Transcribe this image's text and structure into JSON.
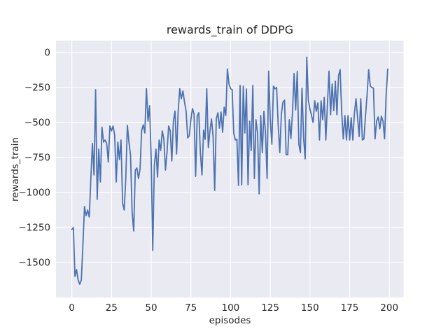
{
  "chart_data": {
    "type": "line",
    "title": "rewards_train of DDPG",
    "xlabel": "episodes",
    "ylabel": "rewards_train",
    "x_ticks": [
      0,
      25,
      50,
      75,
      100,
      125,
      150,
      175,
      200
    ],
    "x_tick_labels": [
      "0",
      "25",
      "50",
      "75",
      "100",
      "125",
      "150",
      "175",
      "200"
    ],
    "y_ticks": [
      0,
      -250,
      -500,
      -750,
      -1000,
      -1250,
      -1500
    ],
    "y_tick_labels": [
      "0",
      "−250",
      "−500",
      "−750",
      "−1000",
      "−1250",
      "−1500"
    ],
    "xlim": [
      -9.95,
      208.95
    ],
    "ylim": [
      -1750,
      85
    ],
    "grid": true,
    "legend": false,
    "series": [
      {
        "name": "rewards_train",
        "color": "#4c72b0",
        "x_start": 0,
        "x_step": 1,
        "y": [
          -1265,
          -1250,
          -1600,
          -1550,
          -1625,
          -1655,
          -1625,
          -1375,
          -1100,
          -1165,
          -1125,
          -1175,
          -900,
          -650,
          -875,
          -265,
          -1050,
          -690,
          -925,
          -533,
          -640,
          -625,
          -650,
          -783,
          -525,
          -560,
          -525,
          -590,
          -925,
          -640,
          -765,
          -625,
          -1075,
          -1125,
          -900,
          -520,
          -640,
          -735,
          -1140,
          -1275,
          -840,
          -825,
          -900,
          -830,
          -558,
          -517,
          -575,
          -258,
          -490,
          -380,
          -758,
          -1415,
          -805,
          -690,
          -890,
          -625,
          -700,
          -560,
          -620,
          -840,
          -708,
          -525,
          -560,
          -775,
          -490,
          -418,
          -725,
          -420,
          -258,
          -330,
          -275,
          -355,
          -420,
          -610,
          -595,
          -480,
          -400,
          -440,
          -885,
          -455,
          -430,
          -720,
          -875,
          -555,
          -620,
          -258,
          -680,
          -560,
          -475,
          -600,
          -985,
          -475,
          -430,
          -540,
          -425,
          -570,
          -390,
          -450,
          -117,
          -225,
          -258,
          -265,
          -575,
          -625,
          -620,
          -950,
          -235,
          -945,
          -240,
          -575,
          -260,
          -945,
          -490,
          -700,
          -235,
          -900,
          -480,
          -575,
          -1010,
          -450,
          -715,
          -420,
          -575,
          -900,
          -133,
          -480,
          -655,
          -240,
          -260,
          -250,
          -520,
          -715,
          -440,
          -355,
          -340,
          -730,
          -730,
          -480,
          -615,
          -430,
          -150,
          -410,
          -135,
          -655,
          -715,
          -255,
          -610,
          -760,
          -33,
          -340,
          -405,
          -450,
          -500,
          -345,
          -420,
          -360,
          -625,
          -345,
          -480,
          -320,
          -625,
          -375,
          -133,
          -445,
          -225,
          -415,
          -205,
          -445,
          -167,
          -122,
          -430,
          -617,
          -450,
          -625,
          -450,
          -625,
          -465,
          -625,
          -435,
          -330,
          -465,
          -600,
          -330,
          -625,
          -617,
          -450,
          -300,
          -123,
          -240,
          -250,
          -255,
          -617,
          -490,
          -460,
          -545,
          -455,
          -490,
          -617,
          -300,
          -118
        ]
      }
    ]
  },
  "colors": {
    "figure_bg": "#ffffff",
    "plot_bg": "#eaeaf2",
    "grid": "#ffffff",
    "text": "#262626",
    "line": "#4c72b0"
  }
}
